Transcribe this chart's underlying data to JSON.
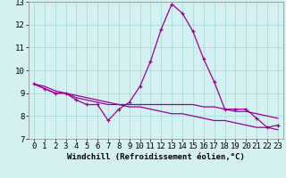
{
  "title": "",
  "xlabel": "Windchill (Refroidissement éolien,°C)",
  "x": [
    0,
    1,
    2,
    3,
    4,
    5,
    6,
    7,
    8,
    9,
    10,
    11,
    12,
    13,
    14,
    15,
    16,
    17,
    18,
    19,
    20,
    21,
    22,
    23
  ],
  "line1": [
    9.4,
    9.2,
    9.0,
    9.0,
    8.7,
    8.5,
    8.5,
    7.8,
    8.3,
    8.6,
    9.3,
    10.4,
    11.8,
    12.9,
    12.5,
    11.7,
    10.5,
    9.5,
    8.3,
    8.3,
    8.3,
    7.9,
    7.5,
    7.6
  ],
  "line2": [
    9.4,
    9.2,
    9.0,
    9.0,
    8.8,
    8.7,
    8.6,
    8.5,
    8.5,
    8.5,
    8.5,
    8.5,
    8.5,
    8.5,
    8.5,
    8.5,
    8.4,
    8.4,
    8.3,
    8.2,
    8.2,
    8.1,
    8.0,
    7.9
  ],
  "line3": [
    9.4,
    9.3,
    9.1,
    9.0,
    8.9,
    8.8,
    8.7,
    8.6,
    8.5,
    8.4,
    8.4,
    8.3,
    8.2,
    8.1,
    8.1,
    8.0,
    7.9,
    7.8,
    7.8,
    7.7,
    7.6,
    7.5,
    7.5,
    7.4
  ],
  "line_color": "#990099",
  "bg_color": "#d4f0f0",
  "grid_color": "#b0dede",
  "ylim": [
    7,
    13
  ],
  "yticks": [
    7,
    8,
    9,
    10,
    11,
    12,
    13
  ],
  "xticks": [
    0,
    1,
    2,
    3,
    4,
    5,
    6,
    7,
    8,
    9,
    10,
    11,
    12,
    13,
    14,
    15,
    16,
    17,
    18,
    19,
    20,
    21,
    22,
    23
  ],
  "tick_fontsize": 6.5,
  "xlabel_fontsize": 6.5
}
